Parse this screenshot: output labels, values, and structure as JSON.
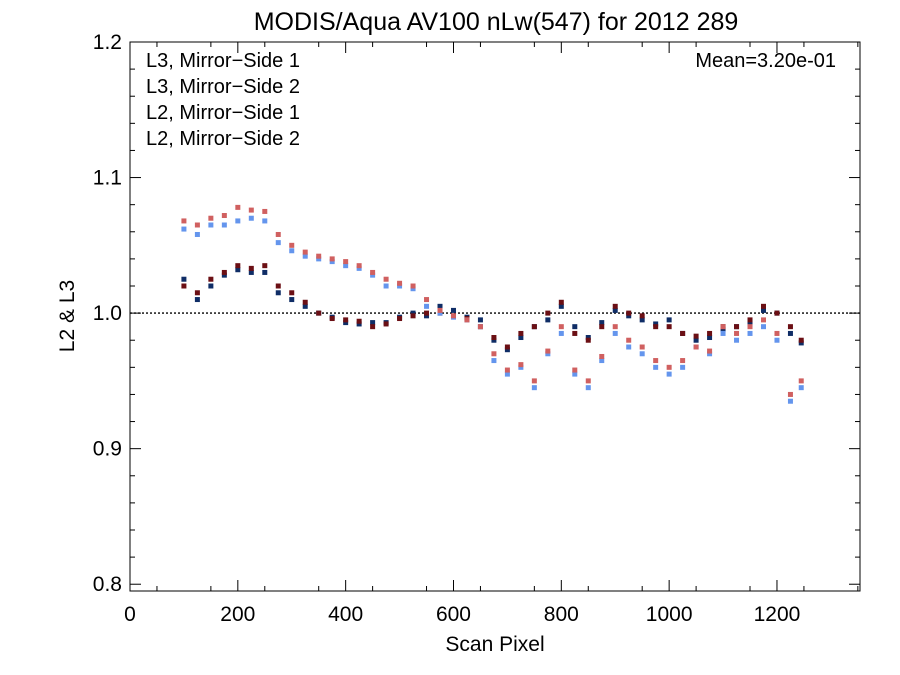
{
  "chart_data": {
    "type": "scatter",
    "title": "MODIS/Aqua AV100 nLw(547) for 2012 289",
    "xlabel": "Scan Pixel",
    "ylabel": "L2 & L3",
    "xlim": [
      0,
      1354
    ],
    "ylim": [
      0.795,
      1.2
    ],
    "x_ticks": [
      0,
      200,
      400,
      600,
      800,
      1000,
      1200
    ],
    "x_tick_labels": [
      "0",
      "200",
      "400",
      "600",
      "800",
      "1000",
      "1200"
    ],
    "y_ticks": [
      0.8,
      0.9,
      1.0,
      1.1,
      1.2
    ],
    "y_tick_labels": [
      "0.8",
      "0.9",
      "1.0",
      "1.1",
      "1.2"
    ],
    "reference_line": 1.0,
    "annotation": "Mean=3.20e-01",
    "annotation_color": "#d06060",
    "legend_position": "top-left",
    "series": [
      {
        "name": "L3, Mirror−Side 1",
        "color": "#0f2d66",
        "x": [
          100,
          125,
          150,
          175,
          200,
          225,
          250,
          275,
          300,
          325,
          350,
          375,
          400,
          425,
          450,
          475,
          500,
          525,
          550,
          575,
          600,
          625,
          650,
          675,
          700,
          725,
          750,
          775,
          800,
          825,
          850,
          875,
          900,
          925,
          950,
          975,
          1000,
          1025,
          1050,
          1075,
          1100,
          1125,
          1150,
          1175,
          1200,
          1225,
          1245
        ],
        "y": [
          1.025,
          1.01,
          1.02,
          1.028,
          1.032,
          1.03,
          1.03,
          1.015,
          1.01,
          1.005,
          1.0,
          0.997,
          0.993,
          0.992,
          0.993,
          0.993,
          0.997,
          1.0,
          0.998,
          1.005,
          1.002,
          0.997,
          0.995,
          0.98,
          0.973,
          0.982,
          0.99,
          0.995,
          1.005,
          0.99,
          0.982,
          0.993,
          1.002,
          0.998,
          0.995,
          0.992,
          0.995,
          0.985,
          0.98,
          0.982,
          0.988,
          0.99,
          0.992,
          1.002,
          1.0,
          0.985,
          0.978
        ]
      },
      {
        "name": "L3, Mirror−Side 2",
        "color": "#6b0f14",
        "x": [
          100,
          125,
          150,
          175,
          200,
          225,
          250,
          275,
          300,
          325,
          350,
          375,
          400,
          425,
          450,
          475,
          500,
          525,
          550,
          575,
          600,
          625,
          650,
          675,
          700,
          725,
          750,
          775,
          800,
          825,
          850,
          875,
          900,
          925,
          950,
          975,
          1000,
          1025,
          1050,
          1075,
          1100,
          1125,
          1150,
          1175,
          1200,
          1225,
          1245
        ],
        "y": [
          1.02,
          1.015,
          1.025,
          1.03,
          1.035,
          1.033,
          1.035,
          1.02,
          1.015,
          1.008,
          1.0,
          0.996,
          0.995,
          0.994,
          0.99,
          0.992,
          0.996,
          0.998,
          1.0,
          1.0,
          0.998,
          0.996,
          0.99,
          0.982,
          0.975,
          0.985,
          0.99,
          1.0,
          1.008,
          0.985,
          0.98,
          0.99,
          1.005,
          1.0,
          0.998,
          0.99,
          0.99,
          0.985,
          0.983,
          0.985,
          0.99,
          0.99,
          0.995,
          1.005,
          1.0,
          0.99,
          0.98
        ]
      },
      {
        "name": "L2, Mirror−Side 1",
        "color": "#6495ed",
        "x": [
          100,
          125,
          150,
          175,
          200,
          225,
          250,
          275,
          300,
          325,
          350,
          375,
          400,
          425,
          450,
          475,
          500,
          525,
          550,
          575,
          600,
          625,
          650,
          675,
          700,
          725,
          750,
          775,
          800,
          825,
          850,
          875,
          900,
          925,
          950,
          975,
          1000,
          1025,
          1050,
          1075,
          1100,
          1125,
          1150,
          1175,
          1200,
          1225,
          1245
        ],
        "y": [
          1.062,
          1.058,
          1.065,
          1.065,
          1.068,
          1.07,
          1.068,
          1.052,
          1.046,
          1.042,
          1.04,
          1.038,
          1.035,
          1.033,
          1.028,
          1.02,
          1.02,
          1.018,
          1.005,
          1.0,
          0.997,
          0.995,
          0.99,
          0.965,
          0.955,
          0.96,
          0.945,
          0.97,
          0.985,
          0.955,
          0.945,
          0.965,
          0.985,
          0.975,
          0.97,
          0.96,
          0.955,
          0.96,
          0.975,
          0.97,
          0.985,
          0.98,
          0.985,
          0.99,
          0.98,
          0.935,
          0.945
        ]
      },
      {
        "name": "L2, Mirror−Side 2",
        "color": "#d06060",
        "x": [
          100,
          125,
          150,
          175,
          200,
          225,
          250,
          275,
          300,
          325,
          350,
          375,
          400,
          425,
          450,
          475,
          500,
          525,
          550,
          575,
          600,
          625,
          650,
          675,
          700,
          725,
          750,
          775,
          800,
          825,
          850,
          875,
          900,
          925,
          950,
          975,
          1000,
          1025,
          1050,
          1075,
          1100,
          1125,
          1150,
          1175,
          1200,
          1225,
          1245
        ],
        "y": [
          1.068,
          1.065,
          1.07,
          1.072,
          1.078,
          1.076,
          1.075,
          1.058,
          1.05,
          1.045,
          1.042,
          1.04,
          1.038,
          1.035,
          1.03,
          1.025,
          1.022,
          1.02,
          1.01,
          1.002,
          0.998,
          0.995,
          0.99,
          0.97,
          0.958,
          0.962,
          0.95,
          0.972,
          0.99,
          0.958,
          0.95,
          0.968,
          0.99,
          0.98,
          0.975,
          0.965,
          0.96,
          0.965,
          0.975,
          0.972,
          0.99,
          0.985,
          0.99,
          0.995,
          0.985,
          0.94,
          0.95
        ]
      }
    ]
  }
}
